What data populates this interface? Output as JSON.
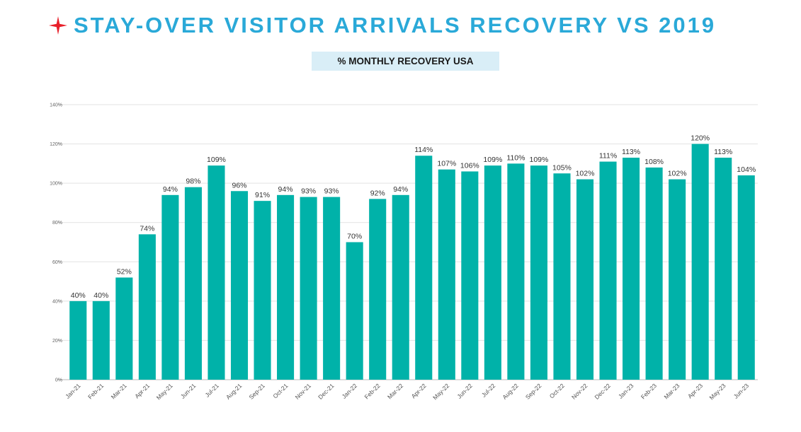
{
  "header": {
    "title": "STAY-OVER VISITOR ARRIVALS RECOVERY VS 2019",
    "icon": "star-icon",
    "accent_color": "#2aa9d8",
    "icon_color": "#e8202a"
  },
  "chart_data": {
    "type": "bar",
    "title": "% MONTHLY RECOVERY USA",
    "xlabel": "",
    "ylabel": "",
    "ylim": [
      0,
      140
    ],
    "y_ticks": [
      0,
      20,
      40,
      60,
      80,
      100,
      120,
      140
    ],
    "y_tick_labels": [
      "0%",
      "20%",
      "40%",
      "60%",
      "80%",
      "100%",
      "120%",
      "140%"
    ],
    "grid": true,
    "bar_color": "#00b2a9",
    "categories": [
      "Jan-21",
      "Feb-21",
      "Mar-21",
      "Apr-21",
      "May-21",
      "Jun-21",
      "Jul-21",
      "Aug-21",
      "Sep-21",
      "Oct-21",
      "Nov-21",
      "Dec-21",
      "Jan-22",
      "Feb-22",
      "Mar-22",
      "Apr-22",
      "May-22",
      "Jun-22",
      "Jul-22",
      "Aug-22",
      "Sep-22",
      "Oct-22",
      "Nov-22",
      "Dec-22",
      "Jan-23",
      "Feb-23",
      "Mar-23",
      "Apr-23",
      "May-23",
      "Jun-23"
    ],
    "values": [
      40,
      40,
      52,
      74,
      94,
      98,
      109,
      96,
      91,
      94,
      93,
      93,
      70,
      92,
      94,
      114,
      107,
      106,
      109,
      110,
      109,
      105,
      102,
      111,
      113,
      108,
      102,
      120,
      113,
      104
    ],
    "data_labels": [
      "40%",
      "40%",
      "52%",
      "74%",
      "94%",
      "98%",
      "109%",
      "96%",
      "91%",
      "94%",
      "93%",
      "93%",
      "70%",
      "92%",
      "94%",
      "114%",
      "107%",
      "106%",
      "109%",
      "110%",
      "109%",
      "105%",
      "102%",
      "111%",
      "113%",
      "108%",
      "102%",
      "120%",
      "113%",
      "104%"
    ]
  }
}
